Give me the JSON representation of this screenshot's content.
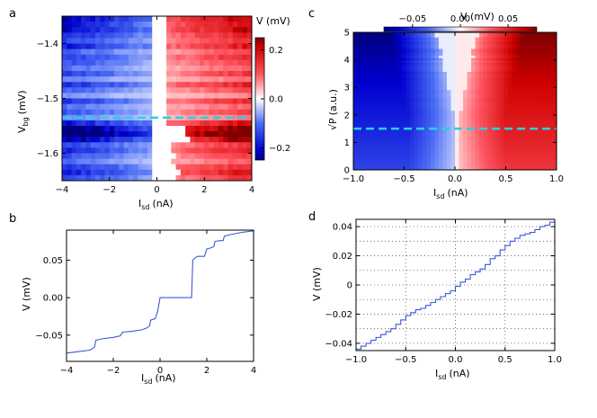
{
  "panels": {
    "a": {
      "label": "a",
      "type": "heatmap",
      "xlabel_main": "I",
      "xlabel_sub": "sd",
      "xlabel_unit": "(nA)",
      "ylabel_main": "V",
      "ylabel_sub": "bg",
      "ylabel_unit": "(mV)",
      "xlim": [
        -4,
        4
      ],
      "ylim": [
        -1.65,
        -1.35
      ],
      "xticks": [
        -4,
        -2,
        0,
        2,
        4
      ],
      "xtick_labels": [
        "−4",
        "−2",
        "0",
        "2",
        "4"
      ],
      "yticks": [
        -1.4,
        -1.5,
        -1.6
      ],
      "ytick_labels": [
        "−1.4",
        "−1.5",
        "−1.6"
      ],
      "cut_line_y": -1.535,
      "colorbar": {
        "label": "V (mV)",
        "range": [
          -0.25,
          0.25
        ],
        "ticks": [
          0.2,
          0.0,
          -0.2
        ],
        "tick_labels": [
          "0.2",
          "0.0",
          "−0.2"
        ]
      }
    },
    "b": {
      "label": "b",
      "type": "line",
      "xlabel_main": "I",
      "xlabel_sub": "sd",
      "xlabel_unit": "(nA)",
      "ylabel": "V (mV)",
      "xlim": [
        -4,
        4
      ],
      "ylim": [
        -0.085,
        0.09
      ],
      "xticks": [
        -4,
        -2,
        0,
        2,
        4
      ],
      "xtick_labels": [
        "−4",
        "−2",
        "0",
        "2",
        "4"
      ],
      "yticks": [
        0.05,
        0.0,
        -0.05
      ],
      "ytick_labels": [
        "0.05",
        "0.00",
        "−0.05"
      ]
    },
    "c": {
      "label": "c",
      "type": "heatmap",
      "xlabel_main": "I",
      "xlabel_sub": "sd",
      "xlabel_unit": "(nA)",
      "ylabel_main": "√P",
      "ylabel_unit": "(a.u.)",
      "xlim": [
        -1.0,
        1.0
      ],
      "ylim": [
        0,
        5
      ],
      "xticks": [
        -1.0,
        -0.5,
        0.0,
        0.5,
        1.0
      ],
      "xtick_labels": [
        "−1.0",
        "−0.5",
        "0.0",
        "0.5",
        "1.0"
      ],
      "yticks": [
        0,
        1,
        2,
        3,
        4,
        5
      ],
      "ytick_labels": [
        "0",
        "1",
        "2",
        "3",
        "4",
        "5"
      ],
      "cut_line_y": 1.5,
      "colorbar": {
        "label": "V (mV)",
        "range": [
          -0.08,
          0.08
        ],
        "ticks": [
          -0.05,
          0.0,
          0.05
        ],
        "tick_labels": [
          "−0.05",
          "0.00",
          "0.05"
        ]
      }
    },
    "d": {
      "label": "d",
      "type": "line",
      "xlabel_main": "I",
      "xlabel_sub": "sd",
      "xlabel_unit": "(nA)",
      "ylabel": "V (mV)",
      "xlim": [
        -1.0,
        1.0
      ],
      "ylim": [
        -0.045,
        0.045
      ],
      "xticks": [
        -1.0,
        -0.5,
        0.0,
        0.5,
        1.0
      ],
      "xtick_labels": [
        "−1.0",
        "−0.5",
        "0.0",
        "0.5",
        "1.0"
      ],
      "yticks": [
        0.04,
        0.02,
        0,
        -0.02,
        -0.04
      ],
      "ytick_labels": [
        "0.04",
        "0.02",
        "0",
        "−0.02",
        "−0.04"
      ],
      "grid": true
    }
  },
  "chart_data": [
    {
      "type": "heatmap",
      "title": "a",
      "xlabel": "Isd (nA)",
      "ylabel": "Vbg (mV)",
      "x_range": [
        -4,
        4
      ],
      "y_range": [
        -1.65,
        -1.35
      ],
      "row_vbg": [
        -1.345,
        -1.355,
        -1.365,
        -1.375,
        -1.385,
        -1.395,
        -1.405,
        -1.415,
        -1.425,
        -1.435,
        -1.445,
        -1.455,
        -1.465,
        -1.475,
        -1.485,
        -1.495,
        -1.505,
        -1.515,
        -1.525,
        -1.535,
        -1.545,
        -1.555,
        -1.565,
        -1.575,
        -1.585,
        -1.595,
        -1.605,
        -1.615,
        -1.625,
        -1.635,
        -1.645
      ],
      "row_plateau_mV": [
        0.18,
        0.16,
        0.14,
        0.15,
        0.12,
        0.1,
        0.13,
        0.08,
        0.11,
        0.09,
        0.07,
        0.1,
        0.06,
        0.12,
        0.08,
        0.05,
        0.11,
        0.07,
        0.09,
        0.06,
        0.14,
        0.2,
        0.23,
        0.17,
        0.1,
        0.12,
        0.09,
        0.07,
        0.11,
        0.13,
        0.1
      ],
      "row_gap_nA": [
        0.3,
        0.3,
        0.3,
        0.3,
        0.3,
        0.3,
        0.4,
        0.3,
        0.3,
        0.3,
        0.4,
        0.3,
        0.4,
        0.4,
        0.3,
        0.3,
        0.4,
        0.4,
        0.3,
        0.3,
        0.3,
        1.2,
        1.3,
        1.4,
        0.6,
        0.7,
        0.8,
        0.7,
        0.9,
        1.0,
        0.9
      ],
      "colorbar": {
        "label": "V (mV)",
        "range": [
          -0.25,
          0.25
        ]
      }
    },
    {
      "type": "line",
      "title": "b",
      "xlabel": "Isd (nA)",
      "ylabel": "V (mV)",
      "x": [
        -4.0,
        -3.5,
        -3.0,
        -2.8,
        -2.75,
        -2.5,
        -2.0,
        -1.7,
        -1.6,
        -1.2,
        -0.8,
        -0.6,
        -0.45,
        -0.4,
        -0.2,
        -0.1,
        0.0,
        0.3,
        1.35,
        1.4,
        1.5,
        1.6,
        1.9,
        2.0,
        2.15,
        2.3,
        2.35,
        2.6,
        2.7,
        2.75,
        3.0,
        3.5,
        4.0
      ],
      "y": [
        -0.074,
        -0.072,
        -0.07,
        -0.066,
        -0.057,
        -0.055,
        -0.053,
        -0.051,
        -0.046,
        -0.045,
        -0.043,
        -0.041,
        -0.038,
        -0.03,
        -0.028,
        -0.018,
        0.0,
        0.0,
        0.0,
        0.05,
        0.053,
        0.055,
        0.055,
        0.065,
        0.066,
        0.068,
        0.075,
        0.076,
        0.076,
        0.082,
        0.084,
        0.087,
        0.089
      ],
      "xlim": [
        -4,
        4
      ],
      "ylim": [
        -0.085,
        0.09
      ]
    },
    {
      "type": "heatmap",
      "title": "c",
      "xlabel": "Isd (nA)",
      "ylabel": "√P (a.u.)",
      "x_range": [
        -1.0,
        1.0
      ],
      "y_range": [
        0,
        5
      ],
      "boundary_sqrtP": [
        0,
        1,
        2,
        3,
        4,
        5
      ],
      "boundary_half_gap_nA": [
        0.05,
        0.06,
        0.1,
        0.25,
        0.4,
        0.55
      ],
      "colorbar": {
        "label": "V (mV)",
        "range": [
          -0.08,
          0.08
        ]
      }
    },
    {
      "type": "line",
      "title": "d",
      "xlabel": "Isd (nA)",
      "ylabel": "V (mV)",
      "x": [
        -1.0,
        -0.95,
        -0.9,
        -0.85,
        -0.8,
        -0.75,
        -0.7,
        -0.65,
        -0.6,
        -0.55,
        -0.5,
        -0.45,
        -0.4,
        -0.35,
        -0.3,
        -0.25,
        -0.2,
        -0.15,
        -0.1,
        -0.05,
        0.0,
        0.05,
        0.1,
        0.15,
        0.2,
        0.25,
        0.3,
        0.35,
        0.4,
        0.45,
        0.5,
        0.55,
        0.6,
        0.65,
        0.7,
        0.75,
        0.8,
        0.85,
        0.9,
        0.95,
        1.0
      ],
      "y": [
        -0.044,
        -0.042,
        -0.04,
        -0.038,
        -0.036,
        -0.034,
        -0.032,
        -0.03,
        -0.027,
        -0.024,
        -0.021,
        -0.019,
        -0.017,
        -0.016,
        -0.014,
        -0.012,
        -0.01,
        -0.008,
        -0.006,
        -0.004,
        -0.001,
        0.002,
        0.004,
        0.007,
        0.009,
        0.011,
        0.014,
        0.018,
        0.02,
        0.024,
        0.027,
        0.03,
        0.032,
        0.034,
        0.035,
        0.036,
        0.038,
        0.04,
        0.041,
        0.043,
        0.045
      ],
      "xlim": [
        -1.0,
        1.0
      ],
      "ylim": [
        -0.045,
        0.045
      ],
      "grid": true
    }
  ]
}
